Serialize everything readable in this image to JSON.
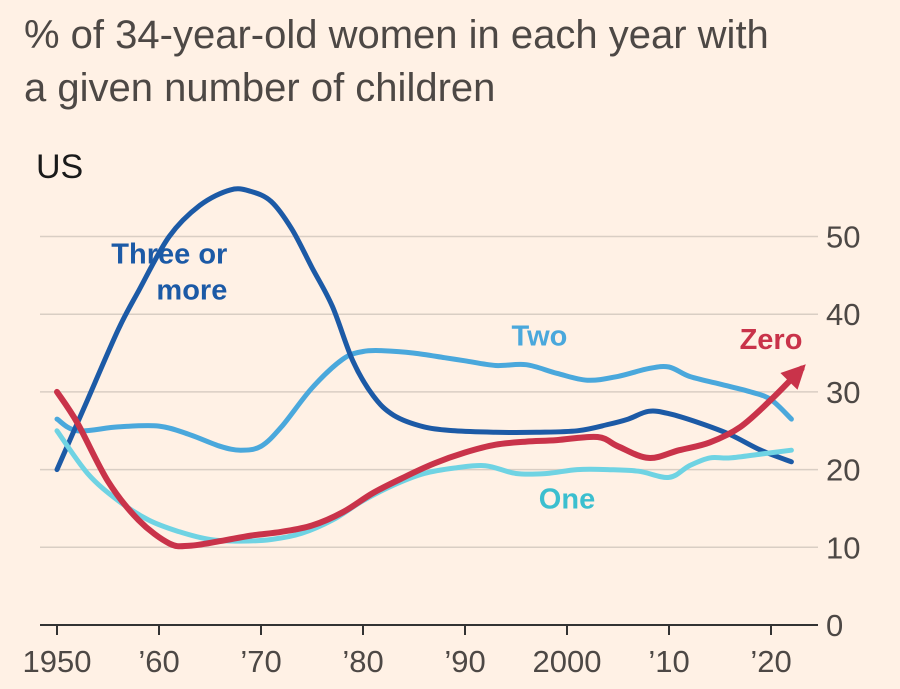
{
  "chart_data": {
    "type": "line",
    "title_line1": "% of 34-year-old women in each year with",
    "title_line2": "a given number of children",
    "region": "US",
    "xlabel": "",
    "ylabel": "",
    "xlim": [
      1950,
      2022
    ],
    "ylim": [
      0,
      55
    ],
    "y_ticks": [
      0,
      10,
      20,
      30,
      40,
      50
    ],
    "y_tick_labels": [
      "0",
      "10",
      "20",
      "30",
      "40",
      "50"
    ],
    "x_ticks": [
      1950,
      1960,
      1970,
      1980,
      1990,
      2000,
      2010,
      2020
    ],
    "x_tick_labels": [
      "1950",
      "’60",
      "’70",
      "’80",
      "’90",
      "2000",
      "’10",
      "’20"
    ],
    "grid": "horizontal",
    "legend": "inline labels",
    "series": [
      {
        "name": "Two",
        "color": "#4aa8dc",
        "x": [
          1950,
          1952,
          1956,
          1960,
          1963,
          1966,
          1968,
          1970,
          1972,
          1975,
          1978,
          1980,
          1982,
          1985,
          1988,
          1990,
          1993,
          1996,
          1999,
          2002,
          2005,
          2008,
          2010,
          2012,
          2015,
          2018,
          2020,
          2022
        ],
        "y": [
          26.5,
          25,
          25.5,
          25.6,
          24.5,
          23,
          22.5,
          23,
          25.5,
          30.5,
          34.2,
          35.2,
          35.3,
          35,
          34.4,
          34,
          33.4,
          33.5,
          32.4,
          31.5,
          32,
          33,
          33.2,
          32,
          31,
          30,
          29,
          26.5
        ]
      },
      {
        "name": "Three or more",
        "color": "#1c5aa6",
        "x": [
          1950,
          1951,
          1953,
          1956,
          1958,
          1961,
          1964,
          1967,
          1969,
          1971,
          1973,
          1975,
          1977,
          1979,
          1981,
          1983,
          1986,
          1989,
          1993,
          1997,
          2001,
          2004,
          2006,
          2008,
          2010,
          2013,
          2016,
          2019,
          2022
        ],
        "y": [
          20,
          23,
          29,
          38,
          43,
          50,
          54,
          56,
          55.8,
          54.5,
          51,
          46,
          41,
          34,
          29.5,
          27,
          25.5,
          25,
          24.8,
          24.8,
          25,
          25.8,
          26.5,
          27.5,
          27.2,
          26,
          24.5,
          22.5,
          21
        ]
      },
      {
        "name": "One",
        "color": "#6fd3e3",
        "x": [
          1950,
          1953,
          1956,
          1959,
          1962,
          1965,
          1968,
          1971,
          1974,
          1977,
          1980,
          1983,
          1986,
          1989,
          1992,
          1995,
          1998,
          2001,
          2004,
          2007,
          2010,
          2012,
          2014,
          2016,
          2019,
          2022
        ],
        "y": [
          25,
          19.5,
          16,
          13.5,
          12,
          11,
          10.8,
          11,
          11.8,
          13.5,
          16,
          18,
          19.5,
          20.2,
          20.5,
          19.5,
          19.5,
          20,
          20,
          19.8,
          19,
          20.5,
          21.5,
          21.5,
          22,
          22.5
        ]
      },
      {
        "name": "Zero",
        "color": "#c9334a",
        "x": [
          1950,
          1952,
          1955,
          1958,
          1961,
          1963,
          1966,
          1969,
          1972,
          1975,
          1978,
          1981,
          1984,
          1987,
          1990,
          1993,
          1996,
          1999,
          2003,
          2005,
          2008,
          2011,
          2014,
          2017,
          2020,
          2023
        ],
        "y": [
          30,
          26,
          18.5,
          13.5,
          10.5,
          10.2,
          10.8,
          11.5,
          12,
          12.8,
          14.5,
          17,
          19,
          20.8,
          22.2,
          23.2,
          23.6,
          23.8,
          24.2,
          23,
          21.5,
          22.5,
          23.5,
          25.5,
          29,
          33
        ]
      }
    ],
    "series_labels": [
      {
        "text_line1": "Three or",
        "text_line2": "more",
        "series": "Three or more",
        "x": 1966.7,
        "y": 46.5,
        "anchor": "end",
        "color": "#1c5aa6"
      },
      {
        "text_line1": "Two",
        "text_line2": "",
        "series": "Two",
        "x": 1997.3,
        "y": 36.0,
        "anchor": "middle",
        "color": "#4aa8dc"
      },
      {
        "text_line1": "Zero",
        "text_line2": "",
        "series": "Zero",
        "x": 2020.0,
        "y": 35.5,
        "anchor": "middle",
        "color": "#c9334a"
      },
      {
        "text_line1": "One",
        "text_line2": "",
        "series": "One",
        "x": 2000.0,
        "y": 15.0,
        "anchor": "middle",
        "color": "#3bbfcf"
      }
    ]
  }
}
